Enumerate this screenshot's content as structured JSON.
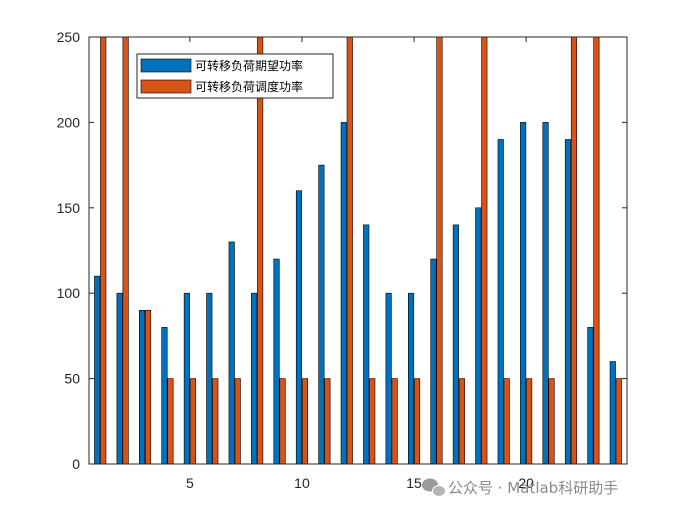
{
  "chart_data": {
    "type": "bar",
    "x": [
      1,
      2,
      3,
      4,
      5,
      6,
      7,
      8,
      9,
      10,
      11,
      12,
      13,
      14,
      15,
      16,
      17,
      18,
      19,
      20,
      21,
      22,
      23,
      24
    ],
    "series": [
      {
        "name": "可转移负荷期望功率",
        "color": "#0072BD",
        "values": [
          110,
          100,
          90,
          80,
          100,
          100,
          130,
          100,
          120,
          160,
          175,
          200,
          140,
          100,
          100,
          120,
          140,
          150,
          190,
          200,
          200,
          190,
          80,
          60
        ]
      },
      {
        "name": "可转移负荷调度功率",
        "color": "#D95319",
        "values": [
          250,
          250,
          90,
          50,
          50,
          50,
          50,
          250,
          50,
          50,
          50,
          250,
          50,
          50,
          50,
          250,
          50,
          250,
          50,
          50,
          50,
          250,
          250,
          50
        ]
      }
    ],
    "xlim": [
      0.5,
      24.5
    ],
    "ylim": [
      0,
      250
    ],
    "xticks": [
      5,
      10,
      15,
      20
    ],
    "yticks": [
      0,
      50,
      100,
      150,
      200,
      250
    ],
    "grid": false,
    "legend_position": "top-left",
    "title": "",
    "xlabel": "",
    "ylabel": ""
  },
  "watermark": {
    "text": "公众号 · Matlab科研助手",
    "icon": "wechat-icon"
  }
}
